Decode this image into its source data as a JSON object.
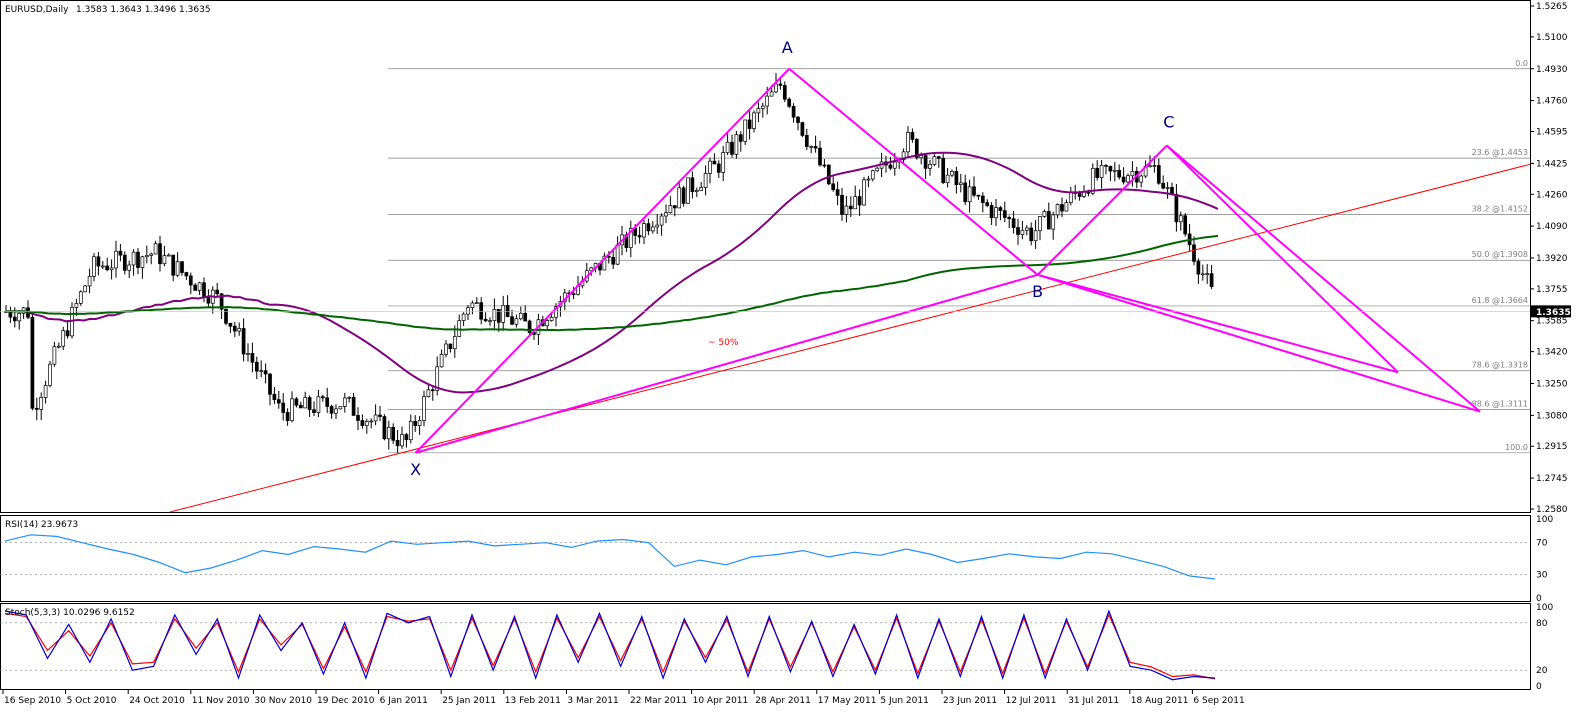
{
  "header": {
    "symbol": "EURUSD,Daily",
    "ohlc": "1.3583 1.3643 1.3496 1.3635"
  },
  "colors": {
    "pattern": "#ff00ff",
    "trendline": "#ff0000",
    "ma_fast": "#800080",
    "ma_slow": "#006400",
    "rsi_line": "#1e90ff",
    "stoch_main": "#0000cd",
    "stoch_signal": "#ff0000",
    "fib_line": "#808080",
    "point_label": "#000080"
  },
  "chart_data": [
    {
      "type": "candlestick",
      "panel": "price",
      "symbol": "EURUSD",
      "timeframe": "Daily",
      "last_price_label": "1.3635",
      "y_ticks": [
        "1.5265",
        "1.5100",
        "1.4930",
        "1.4760",
        "1.4595",
        "1.4425",
        "1.4260",
        "1.4090",
        "1.3920",
        "1.3755",
        "1.3585",
        "1.3420",
        "1.3250",
        "1.3080",
        "1.2915",
        "1.2745",
        "1.2580"
      ],
      "ylim": [
        1.258,
        1.5265
      ],
      "x_ticks": [
        "16 Sep 2010",
        "5 Oct 2010",
        "24 Oct 2010",
        "11 Nov 2010",
        "30 Nov 2010",
        "19 Dec 2010",
        "6 Jan 2011",
        "25 Jan 2011",
        "13 Feb 2011",
        "3 Mar 2011",
        "22 Mar 2011",
        "10 Apr 2011",
        "28 Apr 2011",
        "17 May 2011",
        "5 Jun 2011",
        "23 Jun 2011",
        "12 Jul 2011",
        "31 Jul 2011",
        "18 Aug 2011",
        "6 Sep 2011"
      ],
      "close_path": [
        [
          "16 Sep 2010",
          1.308
        ],
        [
          "5 Oct 2010",
          1.387
        ],
        [
          "24 Oct 2010",
          1.395
        ],
        [
          "11 Nov 2010",
          1.37
        ],
        [
          "30 Nov 2010",
          1.31
        ],
        [
          "19 Dec 2010",
          1.315
        ],
        [
          "6 Jan 2011",
          1.293
        ],
        [
          "25 Jan 2011",
          1.368
        ],
        [
          "13 Feb 2011",
          1.355
        ],
        [
          "3 Mar 2011",
          1.385
        ],
        [
          "22 Mar 2011",
          1.415
        ],
        [
          "10 Apr 2011",
          1.442
        ],
        [
          "28 Apr 2011",
          1.485
        ],
        [
          "17 May 2011",
          1.415
        ],
        [
          "5 Jun 2011",
          1.455
        ],
        [
          "23 Jun 2011",
          1.425
        ],
        [
          "12 Jul 2011",
          1.405
        ],
        [
          "31 Jul 2011",
          1.435
        ],
        [
          "18 Aug 2011",
          1.44
        ],
        [
          "6 Sep 2011",
          1.3635
        ]
      ],
      "pattern_points": [
        {
          "label": "X",
          "date": "6 Jan 2011",
          "price": 1.288
        },
        {
          "label": "A",
          "date": "28 Apr 2011",
          "price": 1.493
        },
        {
          "label": "B",
          "date": "12 Jul 2011",
          "price": 1.383
        },
        {
          "label": "C",
          "date": "18 Aug 2011",
          "price": 1.452
        }
      ],
      "fib_levels": [
        {
          "label": "0.0",
          "price": 1.493
        },
        {
          "label": "23.6 @1.4453",
          "price": 1.4453
        },
        {
          "label": "38.2 @1.4152",
          "price": 1.4152
        },
        {
          "label": "50.0 @1.3908",
          "price": 1.3908
        },
        {
          "label": "61.8 @1.3664",
          "price": 1.3664
        },
        {
          "label": "78.6 @1.3318",
          "price": 1.3318
        },
        {
          "label": "88.6 @1.3111",
          "price": 1.3111
        },
        {
          "label": "100.0",
          "price": 1.288
        }
      ],
      "annotation": "~ 50%"
    },
    {
      "type": "line",
      "panel": "rsi",
      "title": "RSI(14) 23.9673",
      "y_ticks": [
        "100",
        "70",
        "30",
        "0"
      ],
      "ylim": [
        0,
        100
      ],
      "levels": [
        70,
        30
      ],
      "values": [
        72,
        80,
        78,
        70,
        62,
        55,
        45,
        32,
        38,
        48,
        60,
        55,
        65,
        62,
        58,
        72,
        68,
        70,
        72,
        66,
        68,
        70,
        64,
        72,
        74,
        70,
        40,
        48,
        42,
        52,
        55,
        60,
        52,
        58,
        54,
        62,
        55,
        45,
        50,
        56,
        52,
        50,
        58,
        56,
        48,
        40,
        28,
        24
      ]
    },
    {
      "type": "line",
      "panel": "stochastic",
      "title": "Stoch(5,3,3) 10.0296 9.6152",
      "y_ticks": [
        "100",
        "80",
        "20",
        "0"
      ],
      "ylim": [
        0,
        100
      ],
      "levels": [
        80,
        20
      ],
      "main_values": [
        95,
        90,
        35,
        78,
        30,
        85,
        20,
        25,
        90,
        40,
        85,
        10,
        90,
        45,
        80,
        15,
        80,
        10,
        92,
        80,
        88,
        12,
        90,
        20,
        88,
        10,
        90,
        30,
        92,
        25,
        88,
        10,
        85,
        30,
        88,
        12,
        88,
        18,
        82,
        12,
        78,
        15,
        90,
        10,
        85,
        12,
        88,
        10,
        90,
        10,
        85,
        20,
        95,
        25,
        20,
        8,
        12,
        10
      ],
      "signal_values": [
        92,
        88,
        45,
        70,
        38,
        80,
        28,
        30,
        85,
        48,
        80,
        18,
        85,
        52,
        78,
        22,
        75,
        18,
        88,
        82,
        85,
        20,
        86,
        26,
        85,
        18,
        86,
        36,
        88,
        32,
        85,
        18,
        82,
        36,
        84,
        18,
        85,
        24,
        80,
        18,
        75,
        20,
        86,
        16,
        82,
        18,
        84,
        16,
        86,
        16,
        82,
        24,
        90,
        30,
        24,
        12,
        14,
        9
      ]
    }
  ]
}
